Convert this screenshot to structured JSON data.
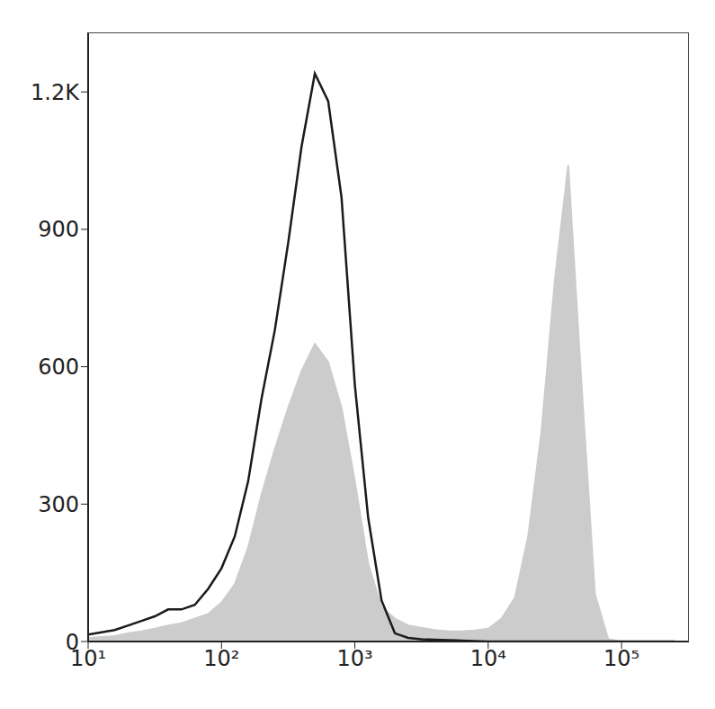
{
  "chart_data": {
    "type": "area",
    "log": "x",
    "grid": false,
    "tick_labels": true,
    "x": [
      10,
      12.6,
      15.8,
      20,
      25.1,
      31.6,
      39.8,
      50.1,
      63.1,
      79.4,
      100,
      125.9,
      158.5,
      199.5,
      251.2,
      316.2,
      398.1,
      501.2,
      631,
      794.3,
      1000,
      1258.9,
      1584.9,
      1995.3,
      2511.9,
      3162.3,
      3981.1,
      5011.9,
      6309.6,
      7943.3,
      10000,
      12589,
      15849,
      19953,
      25119,
      31623,
      39811,
      50119,
      63096,
      79433,
      100000,
      125893,
      158489,
      199526,
      251189
    ],
    "series": [
      {
        "type": "area",
        "color": "#cccccc",
        "values": [
          8,
          10,
          12,
          18,
          22,
          28,
          35,
          40,
          50,
          60,
          85,
          125,
          205,
          320,
          420,
          510,
          590,
          650,
          610,
          510,
          350,
          170,
          75,
          50,
          35,
          30,
          25,
          22,
          22,
          24,
          28,
          50,
          95,
          230,
          460,
          790,
          1040,
          560,
          104,
          5,
          0,
          0,
          0,
          0,
          0
        ]
      },
      {
        "type": "line",
        "color": "#1a1a1a",
        "values": [
          15,
          20,
          25,
          35,
          45,
          55,
          70,
          70,
          80,
          115,
          160,
          230,
          350,
          530,
          680,
          870,
          1080,
          1240,
          1180,
          970,
          560,
          270,
          90,
          18,
          8,
          5,
          4,
          3,
          2,
          1,
          0,
          0,
          0,
          0,
          0,
          0,
          0,
          0,
          0,
          0,
          0,
          0,
          0,
          0,
          0
        ]
      }
    ],
    "xlim": [
      10,
      320000
    ],
    "xticks": [
      {
        "value": 10,
        "label": "10¹"
      },
      {
        "value": 100,
        "label": "10²"
      },
      {
        "value": 1000,
        "label": "10³"
      },
      {
        "value": 10000,
        "label": "10⁴"
      },
      {
        "value": 100000,
        "label": "10⁵"
      }
    ],
    "ylim": [
      0,
      1330
    ],
    "yticks": [
      0,
      300,
      600,
      900,
      {
        "value": 1200,
        "label": "1.2K"
      }
    ]
  }
}
